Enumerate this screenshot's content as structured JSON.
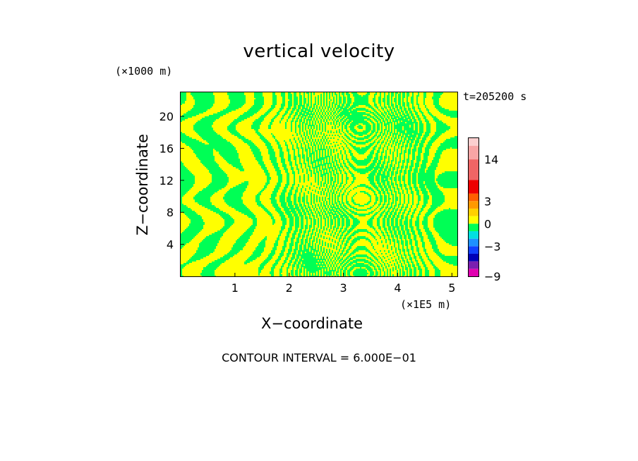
{
  "chart_data": {
    "type": "heatmap",
    "title": "vertical velocity",
    "xlabel": "X−coordinate",
    "ylabel": "Z−coordinate",
    "x_unit": "(×1E5 m)",
    "y_unit": "(×1000 m)",
    "time_label": "t=205200 s",
    "footer": "CONTOUR INTERVAL = 6.000E−01",
    "xlim": [
      0,
      5.1
    ],
    "ylim": [
      0,
      23
    ],
    "x_ticks": [
      {
        "value": 1,
        "label": "1"
      },
      {
        "value": 2,
        "label": "2"
      },
      {
        "value": 3,
        "label": "3"
      },
      {
        "value": 4,
        "label": "4"
      },
      {
        "value": 5,
        "label": "5"
      }
    ],
    "y_ticks": [
      {
        "value": 4,
        "label": "4"
      },
      {
        "value": 8,
        "label": "8"
      },
      {
        "value": 12,
        "label": "12"
      },
      {
        "value": 16,
        "label": "16"
      },
      {
        "value": 20,
        "label": "20"
      }
    ],
    "colorbar": {
      "bands": [
        {
          "lo": -9,
          "hi": -7,
          "color": "#e000b0"
        },
        {
          "lo": -7,
          "hi": -5,
          "color": "#7a1fb0"
        },
        {
          "lo": -5,
          "hi": -4,
          "color": "#0000b8"
        },
        {
          "lo": -4,
          "hi": -3,
          "color": "#1040ff"
        },
        {
          "lo": -3,
          "hi": -2,
          "color": "#1e90ff"
        },
        {
          "lo": -2,
          "hi": -1,
          "color": "#00e0e0"
        },
        {
          "lo": -1,
          "hi": 0,
          "color": "#00ff55"
        },
        {
          "lo": 0,
          "hi": 1,
          "color": "#ffff00"
        },
        {
          "lo": 1,
          "hi": 2,
          "color": "#ffd000"
        },
        {
          "lo": 2,
          "hi": 3,
          "color": "#ff9900"
        },
        {
          "lo": 3,
          "hi": 4,
          "color": "#ff6000"
        },
        {
          "lo": 4,
          "hi": 8,
          "color": "#ee0000"
        },
        {
          "lo": 8,
          "hi": 14,
          "color": "#f06565"
        },
        {
          "lo": 14,
          "hi": 18,
          "color": "#f8a5a5"
        },
        {
          "lo": 18,
          "hi": 20,
          "color": "#fccfcf"
        }
      ],
      "labels": [
        {
          "value": 14,
          "label": "14"
        },
        {
          "value": 3,
          "label": "3"
        },
        {
          "value": 0,
          "label": "0"
        },
        {
          "value": -3,
          "label": "−3"
        },
        {
          "value": -9,
          "label": "−9"
        }
      ]
    },
    "field_colors": {
      "positive": "#ffff00",
      "negative": "#00ff55"
    },
    "grid": false
  }
}
